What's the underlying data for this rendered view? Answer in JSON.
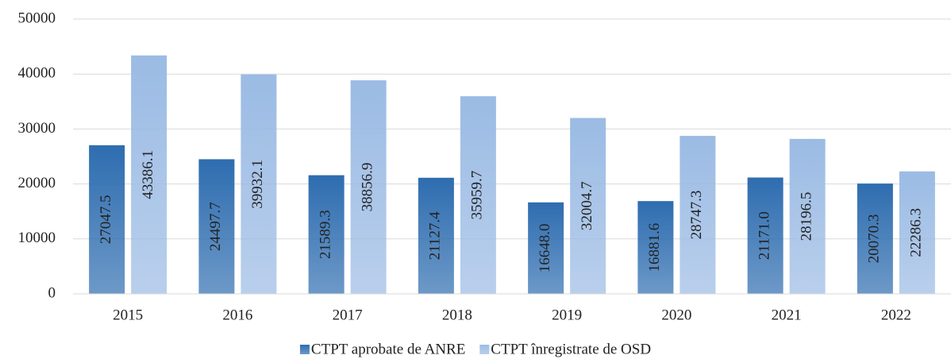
{
  "chart_data": {
    "type": "bar",
    "categories": [
      "2015",
      "2016",
      "2017",
      "2018",
      "2019",
      "2020",
      "2021",
      "2022"
    ],
    "series": [
      {
        "name": "CTPT aprobate de ANRE",
        "color": "#2e6db0",
        "values": [
          27047.5,
          24497.7,
          21589.3,
          21127.4,
          16648.0,
          16881.6,
          21171.0,
          20070.3
        ],
        "value_labels": [
          "27047.5",
          "24497.7",
          "21589.3",
          "21127.4",
          "16648.0",
          "16881.6",
          "21171.0",
          "20070.3"
        ]
      },
      {
        "name": "CTPT înregistrate de OSD",
        "color": "#9bbbe4",
        "values": [
          43386.1,
          39932.1,
          38856.9,
          35959.7,
          32004.7,
          28747.3,
          28196.5,
          22286.3
        ],
        "value_labels": [
          "43386.1",
          "39932.1",
          "38856.9",
          "35959.7",
          "32004.7",
          "28747.3",
          "28196.5",
          "22286.3"
        ]
      }
    ],
    "ylim": [
      0,
      50000
    ],
    "yticks": [
      0,
      10000,
      20000,
      30000,
      40000,
      50000
    ],
    "grid": true,
    "legend": "bottom"
  }
}
